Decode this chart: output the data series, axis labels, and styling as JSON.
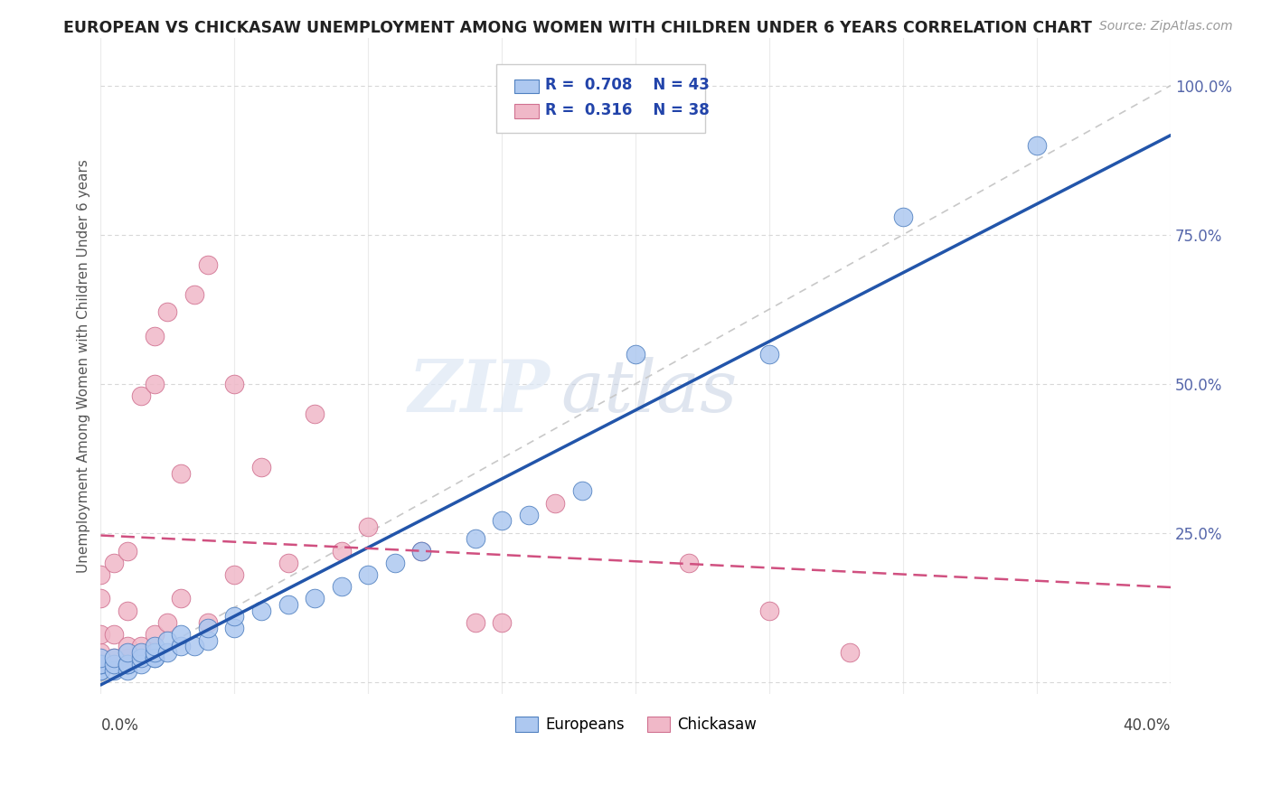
{
  "title": "EUROPEAN VS CHICKASAW UNEMPLOYMENT AMONG WOMEN WITH CHILDREN UNDER 6 YEARS CORRELATION CHART",
  "source": "Source: ZipAtlas.com",
  "ylabel": "Unemployment Among Women with Children Under 6 years",
  "xlim": [
    0.0,
    0.4
  ],
  "ylim": [
    -0.02,
    1.08
  ],
  "watermark_zip": "ZIP",
  "watermark_atlas": "atlas",
  "legend_eu_R": "0.708",
  "legend_eu_N": "43",
  "legend_ch_R": "0.316",
  "legend_ch_N": "38",
  "eu_fill_color": "#adc8f0",
  "eu_edge_color": "#5080c0",
  "eu_line_color": "#2255aa",
  "ch_fill_color": "#f0b8c8",
  "ch_edge_color": "#d07090",
  "ch_line_color": "#d05080",
  "ref_line_color": "#c8c8c8",
  "grid_color": "#d8d8d8",
  "ytick_color": "#5566aa",
  "background_color": "#ffffff",
  "eu_x": [
    0.0,
    0.0,
    0.0,
    0.0,
    0.0,
    0.005,
    0.005,
    0.005,
    0.01,
    0.01,
    0.01,
    0.01,
    0.015,
    0.015,
    0.015,
    0.02,
    0.02,
    0.02,
    0.02,
    0.025,
    0.025,
    0.03,
    0.03,
    0.035,
    0.04,
    0.04,
    0.05,
    0.05,
    0.06,
    0.07,
    0.08,
    0.09,
    0.1,
    0.11,
    0.12,
    0.14,
    0.15,
    0.16,
    0.18,
    0.2,
    0.25,
    0.3,
    0.35
  ],
  "eu_y": [
    0.02,
    0.02,
    0.03,
    0.03,
    0.04,
    0.02,
    0.03,
    0.04,
    0.02,
    0.03,
    0.03,
    0.05,
    0.03,
    0.04,
    0.05,
    0.04,
    0.04,
    0.05,
    0.06,
    0.05,
    0.07,
    0.06,
    0.08,
    0.06,
    0.07,
    0.09,
    0.09,
    0.11,
    0.12,
    0.13,
    0.14,
    0.16,
    0.18,
    0.2,
    0.22,
    0.24,
    0.27,
    0.28,
    0.32,
    0.55,
    0.55,
    0.78,
    0.9
  ],
  "ch_x": [
    0.0,
    0.0,
    0.0,
    0.0,
    0.0,
    0.005,
    0.005,
    0.005,
    0.01,
    0.01,
    0.01,
    0.01,
    0.015,
    0.015,
    0.02,
    0.02,
    0.02,
    0.025,
    0.025,
    0.03,
    0.03,
    0.035,
    0.04,
    0.04,
    0.05,
    0.05,
    0.06,
    0.07,
    0.08,
    0.09,
    0.1,
    0.12,
    0.14,
    0.15,
    0.17,
    0.22,
    0.25,
    0.28
  ],
  "ch_y": [
    0.03,
    0.05,
    0.08,
    0.14,
    0.18,
    0.04,
    0.08,
    0.2,
    0.04,
    0.06,
    0.12,
    0.22,
    0.06,
    0.48,
    0.08,
    0.5,
    0.58,
    0.1,
    0.62,
    0.14,
    0.35,
    0.65,
    0.1,
    0.7,
    0.5,
    0.18,
    0.36,
    0.2,
    0.45,
    0.22,
    0.26,
    0.22,
    0.1,
    0.1,
    0.3,
    0.2,
    0.12,
    0.05
  ]
}
